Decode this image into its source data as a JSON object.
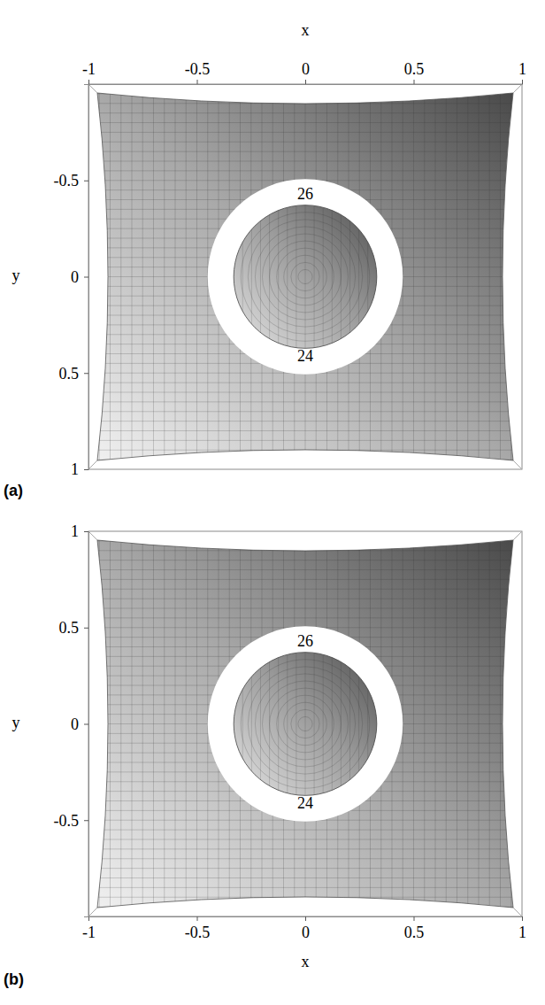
{
  "chart_data": [
    {
      "type": "surface",
      "label": "(a)",
      "x_label": "x",
      "y_label": "y",
      "xlim": [
        -1,
        1
      ],
      "ylim": [
        1,
        -1
      ],
      "xticks": [
        -1,
        -0.5,
        0,
        0.5,
        1
      ],
      "yticks": [
        -0.5,
        0,
        0.5,
        1
      ],
      "hole": {
        "center": [
          0,
          0
        ],
        "inner_radius": 0.33,
        "outer_radius": 0.45
      },
      "annotations": [
        {
          "text": "26",
          "x": 0,
          "y": -0.42
        },
        {
          "text": "24",
          "x": 0,
          "y": 0.42
        }
      ]
    },
    {
      "type": "surface",
      "label": "(b)",
      "x_label": "x",
      "y_label": "y",
      "xlim": [
        -1,
        1
      ],
      "ylim": [
        -1,
        1
      ],
      "xticks": [
        -1,
        -0.5,
        0,
        0.5,
        1
      ],
      "yticks": [
        1,
        0.5,
        0,
        -0.5
      ],
      "hole": {
        "center": [
          0,
          0
        ],
        "inner_radius": 0.33,
        "outer_radius": 0.45
      },
      "annotations": [
        {
          "text": "26",
          "x": 0,
          "y": 0.42
        },
        {
          "text": "24",
          "x": 0,
          "y": -0.42
        }
      ]
    }
  ]
}
